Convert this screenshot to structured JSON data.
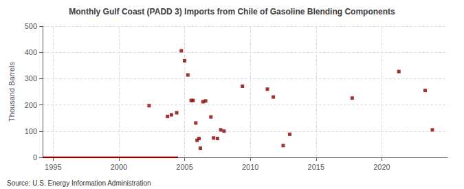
{
  "chart_data": {
    "type": "scatter",
    "title": "Monthly Gulf Coast (PADD 3) Imports from Chile of Gasoline Blending Components",
    "ylabel": "Thousand Barrels",
    "annotations": [
      "Source: U.S. Energy Information Administration"
    ],
    "xlim": [
      1994.2,
      2025.0
    ],
    "xticks": [
      1995,
      2000,
      2005,
      2010,
      2015,
      2020
    ],
    "ylim": [
      0,
      500
    ],
    "yticks": [
      0,
      100,
      200,
      300,
      400,
      500
    ],
    "grid": true,
    "series": [
      {
        "type": "line",
        "line_style": "solid",
        "color": "#8b0000",
        "x": [
          1994.2,
          2004.5
        ],
        "values": [
          0,
          0
        ]
      },
      {
        "type": "scatter",
        "marker": "square",
        "color": "#8b0000",
        "x": [
          2002.3,
          2003.7,
          2004.0,
          2004.4,
          2004.75,
          2005.0,
          2005.25,
          2005.5,
          2005.65,
          2005.85,
          2005.95,
          2006.1,
          2006.2,
          2006.4,
          2006.6,
          2007.0,
          2007.2,
          2007.5,
          2007.75,
          2008.0,
          2009.4,
          2011.3,
          2011.75,
          2012.5,
          2013.0,
          2017.75,
          2021.3,
          2023.3,
          2023.85
        ],
        "values": [
          197,
          156,
          162,
          170,
          406,
          368,
          314,
          217,
          217,
          131,
          65,
          72,
          35,
          212,
          215,
          154,
          74,
          72,
          105,
          100,
          271,
          260,
          230,
          45,
          88,
          226,
          327,
          255,
          105
        ]
      }
    ]
  }
}
